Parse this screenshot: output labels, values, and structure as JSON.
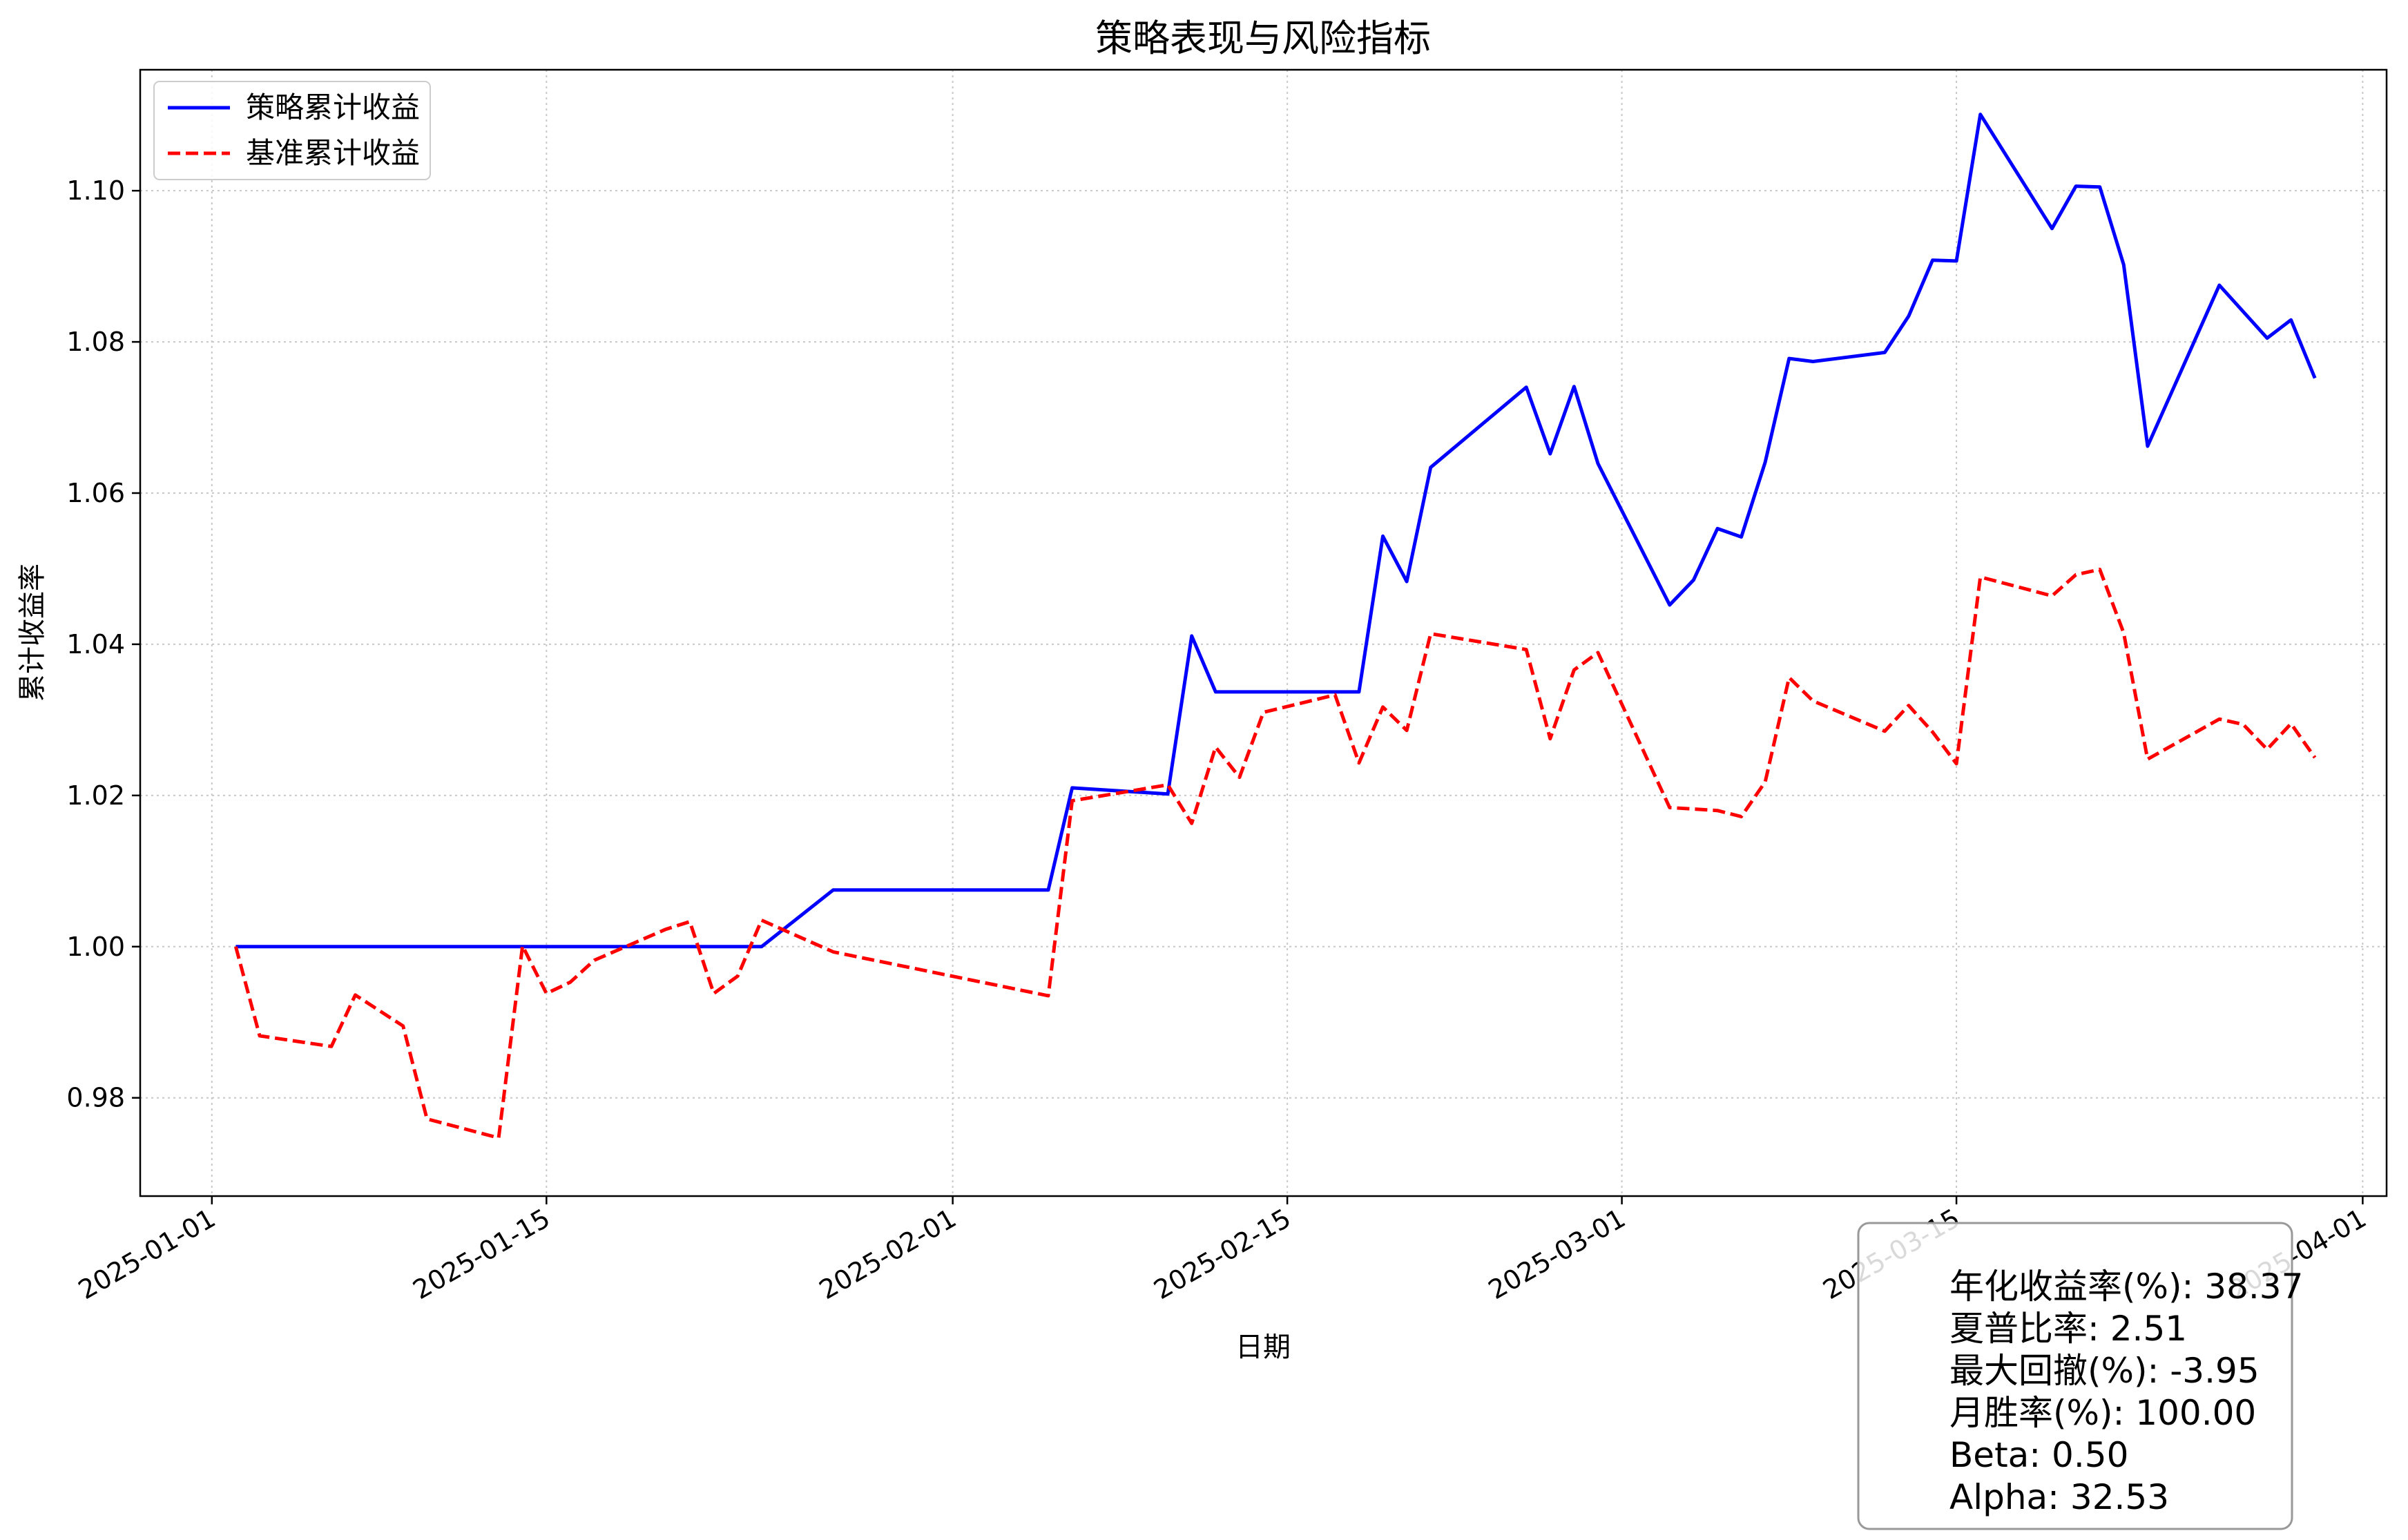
{
  "chart_data": {
    "type": "line",
    "title": "策略表现与风险指标",
    "xlabel": "日期",
    "ylabel": "累计收益率",
    "xlim": [
      "2024-12-29",
      "2025-04-02"
    ],
    "ylim": [
      0.967,
      1.116
    ],
    "x_ticks": [
      "2025-01-01",
      "2025-01-15",
      "2025-02-01",
      "2025-02-15",
      "2025-03-01",
      "2025-03-15",
      "2025-04-01"
    ],
    "y_ticks": [
      "0.98",
      "1.00",
      "1.02",
      "1.04",
      "1.06",
      "1.08",
      "1.10"
    ],
    "grid": true,
    "legend_position": "top-left",
    "series": [
      {
        "name": "策略累计收益",
        "color": "#0000ff",
        "style": "solid",
        "points": [
          [
            "2025-01-02",
            1.0
          ],
          [
            "2025-01-24",
            1.0
          ],
          [
            "2025-01-27",
            1.0075
          ],
          [
            "2025-02-05",
            1.0075
          ],
          [
            "2025-02-06",
            1.021
          ],
          [
            "2025-02-10",
            1.0202
          ],
          [
            "2025-02-11",
            1.0411
          ],
          [
            "2025-02-12",
            1.0337
          ],
          [
            "2025-02-18",
            1.0337
          ],
          [
            "2025-02-19",
            1.0543
          ],
          [
            "2025-02-20",
            1.0483
          ],
          [
            "2025-02-21",
            1.0634
          ],
          [
            "2025-02-25",
            1.074
          ],
          [
            "2025-02-26",
            1.0652
          ],
          [
            "2025-02-27",
            1.0741
          ],
          [
            "2025-02-28",
            1.0639
          ],
          [
            "2025-03-03",
            1.0452
          ],
          [
            "2025-03-04",
            1.0485
          ],
          [
            "2025-03-05",
            1.0553
          ],
          [
            "2025-03-06",
            1.0542
          ],
          [
            "2025-03-07",
            1.0641
          ],
          [
            "2025-03-08",
            1.0778
          ],
          [
            "2025-03-09",
            1.0774
          ],
          [
            "2025-03-12",
            1.0786
          ],
          [
            "2025-03-13",
            1.0834
          ],
          [
            "2025-03-14",
            1.0908
          ],
          [
            "2025-03-15",
            1.0907
          ],
          [
            "2025-03-16",
            1.1101
          ],
          [
            "2025-03-19",
            1.095
          ],
          [
            "2025-03-20",
            1.1006
          ],
          [
            "2025-03-21",
            1.1005
          ],
          [
            "2025-03-22",
            1.0902
          ],
          [
            "2025-03-23",
            1.0662
          ],
          [
            "2025-03-26",
            1.0875
          ],
          [
            "2025-03-28",
            1.0805
          ],
          [
            "2025-03-29",
            1.0829
          ],
          [
            "2025-03-30",
            1.0752
          ]
        ]
      },
      {
        "name": "基准累计收益",
        "color": "#ff0000",
        "style": "dashed",
        "points": [
          [
            "2025-01-02",
            1.0
          ],
          [
            "2025-01-03",
            0.9882
          ],
          [
            "2025-01-06",
            0.9868
          ],
          [
            "2025-01-07",
            0.9936
          ],
          [
            "2025-01-09",
            0.9895
          ],
          [
            "2025-01-10",
            0.9772
          ],
          [
            "2025-01-13",
            0.9747
          ],
          [
            "2025-01-14",
            1.0001
          ],
          [
            "2025-01-15",
            0.9938
          ],
          [
            "2025-01-16",
            0.9953
          ],
          [
            "2025-01-17",
            0.9982
          ],
          [
            "2025-01-20",
            1.0023
          ],
          [
            "2025-01-21",
            1.0033
          ],
          [
            "2025-01-22",
            0.9938
          ],
          [
            "2025-01-23",
            0.9961
          ],
          [
            "2025-01-24",
            1.0035
          ],
          [
            "2025-01-27",
            0.9993
          ],
          [
            "2025-02-05",
            0.9935
          ],
          [
            "2025-02-06",
            1.0193
          ],
          [
            "2025-02-10",
            1.0214
          ],
          [
            "2025-02-11",
            1.0163
          ],
          [
            "2025-02-12",
            1.0264
          ],
          [
            "2025-02-13",
            1.0224
          ],
          [
            "2025-02-14",
            1.031
          ],
          [
            "2025-02-17",
            1.0333
          ],
          [
            "2025-02-18",
            1.0243
          ],
          [
            "2025-02-19",
            1.0317
          ],
          [
            "2025-02-20",
            1.0286
          ],
          [
            "2025-02-21",
            1.0414
          ],
          [
            "2025-02-25",
            1.0393
          ],
          [
            "2025-02-26",
            1.0275
          ],
          [
            "2025-02-27",
            1.0366
          ],
          [
            "2025-02-28",
            1.0389
          ],
          [
            "2025-03-03",
            1.0184
          ],
          [
            "2025-03-05",
            1.018
          ],
          [
            "2025-03-06",
            1.0172
          ],
          [
            "2025-03-07",
            1.0218
          ],
          [
            "2025-03-08",
            1.0356
          ],
          [
            "2025-03-09",
            1.0325
          ],
          [
            "2025-03-12",
            1.0285
          ],
          [
            "2025-03-13",
            1.0319
          ],
          [
            "2025-03-14",
            1.0284
          ],
          [
            "2025-03-15",
            1.0242
          ],
          [
            "2025-03-16",
            1.0489
          ],
          [
            "2025-03-19",
            1.0464
          ],
          [
            "2025-03-20",
            1.0492
          ],
          [
            "2025-03-21",
            1.0499
          ],
          [
            "2025-03-22",
            1.0415
          ],
          [
            "2025-03-23",
            1.0248
          ],
          [
            "2025-03-26",
            1.0301
          ],
          [
            "2025-03-27",
            1.0294
          ],
          [
            "2025-03-28",
            1.0261
          ],
          [
            "2025-03-29",
            1.0295
          ],
          [
            "2025-03-30",
            1.025
          ]
        ]
      }
    ],
    "stats_box": [
      "年化收益率(%): 38.37",
      "夏普比率: 2.51",
      "最大回撤(%): -3.95",
      "月胜率(%): 100.00",
      "Beta: 0.50",
      "Alpha: 32.53"
    ]
  }
}
